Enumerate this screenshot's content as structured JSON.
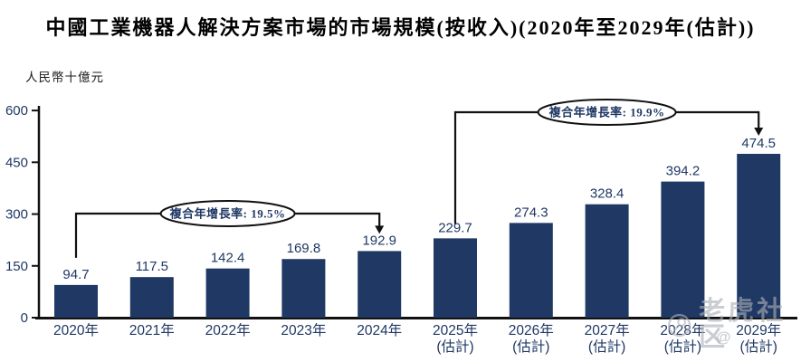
{
  "watermark": {
    "logo_icon": "tiger-community-logo",
    "text": "老虎社区",
    "handle_prefix": "@"
  },
  "chart_data": {
    "type": "bar",
    "title": "中國工業機器人解決方案市場的市場規模(按收入)(2020年至2029年(估計))",
    "ylabel": "人民幣十億元",
    "categories": [
      "2020年",
      "2021年",
      "2022年",
      "2023年",
      "2024年",
      "2025年(估計)",
      "2026年(估計)",
      "2027年(估計)",
      "2028年(估計)",
      "2029年(估計)"
    ],
    "x_labels": [
      {
        "year": "2020年",
        "note": ""
      },
      {
        "year": "2021年",
        "note": ""
      },
      {
        "year": "2022年",
        "note": ""
      },
      {
        "year": "2023年",
        "note": ""
      },
      {
        "year": "2024年",
        "note": ""
      },
      {
        "year": "2025年",
        "note": "(估計)"
      },
      {
        "year": "2026年",
        "note": "(估計)"
      },
      {
        "year": "2027年",
        "note": "(估計)"
      },
      {
        "year": "2028年",
        "note": "(估計)"
      },
      {
        "year": "2029年",
        "note": "(估計)"
      }
    ],
    "values": [
      94.7,
      117.5,
      142.4,
      169.8,
      192.9,
      229.7,
      274.3,
      328.4,
      394.2,
      474.5
    ],
    "ylim": [
      0,
      600
    ],
    "yticks": [
      0,
      150,
      300,
      450,
      600
    ],
    "grid": false,
    "legend": "none",
    "bar_color": "#1F3864",
    "value_label_color": "#1F3864",
    "axis_color": "#111111",
    "annotations": [
      {
        "label": "複合年增長率: 19.5%",
        "from_index": 0,
        "to_index": 4
      },
      {
        "label": "複合年增長率: 19.9%",
        "from_index": 5,
        "to_index": 9
      }
    ]
  }
}
